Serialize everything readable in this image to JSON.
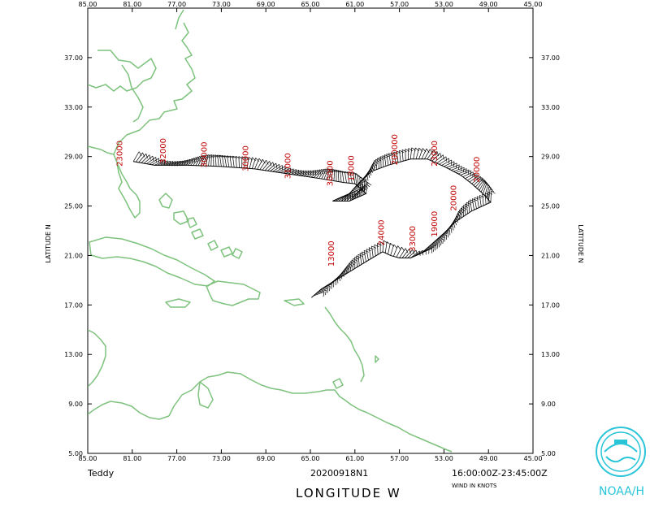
{
  "storm_name": "Teddy",
  "mission_id": "20200918N1",
  "time_range": "16:00:00Z-23:45:00Z",
  "wind_units_label": "WIND IN KNOTS",
  "x_axis_title": "LONGITUDE   W",
  "y_axis_title": "LATITUDE   N",
  "logo_text": "NOAA/H",
  "lon_ticks": [
    "85.00",
    "81.00",
    "77.00",
    "73.00",
    "69.00",
    "65.00",
    "61.00",
    "57.00",
    "53.00",
    "49.00",
    "45.00"
  ],
  "lat_ticks": [
    "5.00",
    "9.00",
    "13.00",
    "17.00",
    "21.00",
    "25.00",
    "29.00",
    "33.00",
    "37.00"
  ],
  "colors": {
    "coast": "#7dc27d",
    "labels": "#c00000",
    "logo": "#28c4d8",
    "track": "#000000"
  },
  "altitude_labels": [
    {
      "text": "23000",
      "lon": -81.9,
      "lat": 28.2
    },
    {
      "text": "32000",
      "lon": -78.0,
      "lat": 28.4
    },
    {
      "text": "30000",
      "lon": -74.3,
      "lat": 28.1
    },
    {
      "text": "30000",
      "lon": -70.6,
      "lat": 27.8
    },
    {
      "text": "31000",
      "lon": -66.8,
      "lat": 27.2
    },
    {
      "text": "30000",
      "lon": -63.0,
      "lat": 26.6
    },
    {
      "text": "18000",
      "lon": -61.1,
      "lat": 27.0
    },
    {
      "text": "200000",
      "lon": -57.2,
      "lat": 28.3
    },
    {
      "text": "23000",
      "lon": -53.6,
      "lat": 28.2
    },
    {
      "text": "20000",
      "lon": -49.8,
      "lat": 26.9
    },
    {
      "text": "20000",
      "lon": -51.9,
      "lat": 24.6
    },
    {
      "text": "24000",
      "lon": -58.4,
      "lat": 21.8
    },
    {
      "text": "13000",
      "lon": -62.9,
      "lat": 20.1
    },
    {
      "text": "33000",
      "lon": -55.6,
      "lat": 21.3
    },
    {
      "text": "19000",
      "lon": -53.6,
      "lat": 22.5
    }
  ],
  "flight_track": [
    [
      -80.9,
      28.6
    ],
    [
      -79.0,
      28.3
    ],
    [
      -76.0,
      28.3
    ],
    [
      -73.0,
      28.2
    ],
    [
      -70.0,
      28.0
    ],
    [
      -67.0,
      27.6
    ],
    [
      -64.0,
      27.2
    ],
    [
      -62.0,
      26.9
    ],
    [
      -61.0,
      26.8
    ],
    [
      -60.0,
      26.0
    ],
    [
      -61.5,
      25.4
    ],
    [
      -63.0,
      25.4
    ],
    [
      -61.5,
      26.0
    ],
    [
      -60.5,
      27.0
    ],
    [
      -59.5,
      27.8
    ],
    [
      -58.0,
      28.3
    ],
    [
      -56.0,
      28.8
    ],
    [
      -54.5,
      28.8
    ],
    [
      -53.0,
      28.2
    ],
    [
      -51.5,
      27.5
    ],
    [
      -50.5,
      26.8
    ],
    [
      -49.5,
      26.0
    ],
    [
      -48.8,
      25.3
    ],
    [
      -50.5,
      24.6
    ],
    [
      -52.0,
      23.7
    ],
    [
      -53.0,
      22.8
    ],
    [
      -54.0,
      22.0
    ],
    [
      -55.0,
      21.2
    ],
    [
      -56.0,
      20.8
    ],
    [
      -57.0,
      20.8
    ],
    [
      -57.8,
      21.0
    ],
    [
      -58.5,
      21.3
    ],
    [
      -60.0,
      20.5
    ],
    [
      -62.0,
      19.4
    ],
    [
      -64.0,
      18.3
    ],
    [
      -64.9,
      17.6
    ]
  ]
}
